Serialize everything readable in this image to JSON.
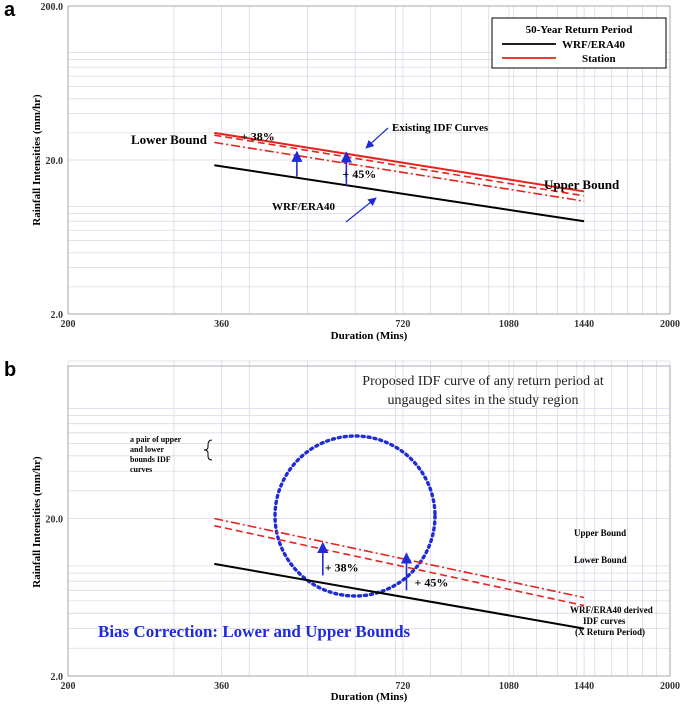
{
  "colors": {
    "wrf": "#000000",
    "station": "#e8221c",
    "arrow": "#1f2bd6",
    "circle": "#1f2bd6",
    "title_b": "#1f2bd6"
  },
  "chart_data": [
    {
      "panel": "a",
      "type": "line",
      "xscale": "log",
      "yscale": "log",
      "xlim": [
        200,
        2000
      ],
      "ylim": [
        2.0,
        200.0
      ],
      "xticks": [
        200,
        360,
        720,
        1080,
        1440,
        2000
      ],
      "yticks": [
        2.0,
        20.0,
        200.0
      ],
      "xtick_labels": [
        "200",
        "360",
        "720",
        "1080",
        "1440",
        "2000"
      ],
      "ytick_labels": [
        "2.0",
        "20.0",
        "200.0"
      ],
      "xlabel": "Duration (Mins)",
      "ylabel": "Rainfall Intensities (mm/hr)",
      "legend": {
        "title": "50-Year Return Period",
        "entries": [
          {
            "label": "WRF/ERA40",
            "color": "#000000"
          },
          {
            "label": "Station",
            "color": "#e8221c"
          }
        ],
        "position": "top-right"
      },
      "series": [
        {
          "name": "WRF/ERA40",
          "style": "solid",
          "color": "#000000",
          "x": [
            350,
            1440
          ],
          "y": [
            18.5,
            8.0
          ]
        },
        {
          "name": "Station (existing IDF)",
          "style": "solid",
          "color": "#e8221c",
          "x": [
            350,
            1440
          ],
          "y": [
            30.0,
            12.5
          ]
        },
        {
          "name": "Upper Bound",
          "style": "dashed",
          "color": "#e8221c",
          "x": [
            350,
            1440
          ],
          "y": [
            29.0,
            11.7
          ]
        },
        {
          "name": "Lower Bound",
          "style": "dashdot",
          "color": "#e8221c",
          "x": [
            350,
            1440
          ],
          "y": [
            26.0,
            10.8
          ]
        }
      ],
      "arrows": [
        {
          "label": "+ 38%",
          "x": 480,
          "y_from": 15.6,
          "y_to": 22.6
        },
        {
          "label": "+ 45%",
          "x": 580,
          "y_from": 13.6,
          "y_to": 22.4
        }
      ],
      "annotations": {
        "lower_bound": "Lower Bound",
        "upper_bound": "Upper Bound",
        "existing": "Existing IDF Curves",
        "wrf": "WRF/ERA40",
        "pct38": "+ 38%",
        "pct45": "+ 45%"
      }
    },
    {
      "panel": "b",
      "type": "line",
      "xscale": "log",
      "yscale": "log",
      "xlim": [
        200,
        2000
      ],
      "ylim": [
        2.0,
        200.0
      ],
      "xticks": [
        200,
        360,
        720,
        1080,
        1440,
        2000
      ],
      "yticks": [
        2.0,
        20.0
      ],
      "xtick_labels": [
        "200",
        "360",
        "720",
        "1080",
        "1440",
        "2000"
      ],
      "ytick_labels": [
        "2.0",
        "20.0"
      ],
      "xlabel": "Duration (Mins)",
      "ylabel": "Rainfall Intensities (mm/hr)",
      "series": [
        {
          "name": "WRF/ERA40 derived IDF curves (X Return Period)",
          "style": "solid",
          "color": "#000000",
          "x": [
            350,
            1440
          ],
          "y": [
            10.3,
            4.0
          ]
        },
        {
          "name": "Upper Bound",
          "style": "dashdot",
          "color": "#e8221c",
          "x": [
            350,
            1440
          ],
          "y": [
            20.0,
            6.3
          ]
        },
        {
          "name": "Lower Bound",
          "style": "dashed",
          "color": "#e8221c",
          "x": [
            350,
            1440
          ],
          "y": [
            18.0,
            5.6
          ]
        }
      ],
      "arrows": [
        {
          "label": "+ 38%",
          "x": 530,
          "y_from": 8.7,
          "y_to": 14.0
        },
        {
          "label": "+ 45%",
          "x": 730,
          "y_from": 7.0,
          "y_to": 12.0
        }
      ],
      "annotations": {
        "title_line1": "Proposed IDF curve of any return period at",
        "title_line2": "ungauged sites in the study region",
        "pair_line1": "a pair of upper",
        "pair_line2": "and lower",
        "pair_line3": "bounds IDF",
        "pair_line4": "curves",
        "upper_bound": "Upper Bound",
        "lower_bound": "Lower Bound",
        "wrf_line1": "WRF/ERA40 derived",
        "wrf_line2": "IDF curves",
        "wrf_line3": "(X Return Period)",
        "bias": "Bias Correction: Lower and Upper Bounds",
        "pct38": "+ 38%",
        "pct45": "+ 45%"
      }
    }
  ],
  "panel_labels": {
    "a": "a",
    "b": "b"
  }
}
